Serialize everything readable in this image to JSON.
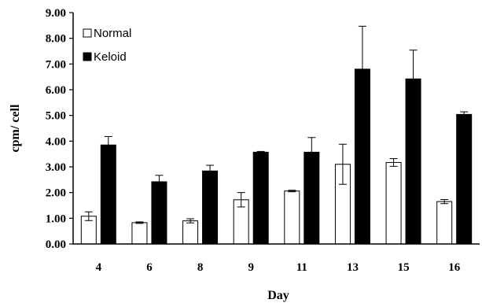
{
  "chart_data": {
    "type": "bar",
    "title": "",
    "xlabel": "Day",
    "ylabel": "cpm/ cell",
    "ylim": [
      0,
      9
    ],
    "yticks": [
      "0.00",
      "1.00",
      "2.00",
      "3.00",
      "4.00",
      "5.00",
      "6.00",
      "7.00",
      "8.00",
      "9.00"
    ],
    "categories": [
      "4",
      "6",
      "8",
      "9",
      "11",
      "13",
      "15",
      "16"
    ],
    "legend_position": "top-left",
    "grid": false,
    "series": [
      {
        "name": "Normal",
        "color": "#ffffff",
        "values": [
          1.08,
          0.83,
          0.9,
          1.72,
          2.06,
          3.1,
          3.17,
          1.65
        ],
        "errors": [
          0.17,
          0.03,
          0.08,
          0.28,
          0.03,
          0.78,
          0.15,
          0.08
        ]
      },
      {
        "name": "Keloid",
        "color": "#000000",
        "values": [
          3.85,
          2.42,
          2.84,
          3.57,
          3.57,
          6.8,
          6.42,
          5.04
        ],
        "errors": [
          0.33,
          0.25,
          0.22,
          0.03,
          0.57,
          1.67,
          1.12,
          0.1
        ]
      }
    ]
  }
}
